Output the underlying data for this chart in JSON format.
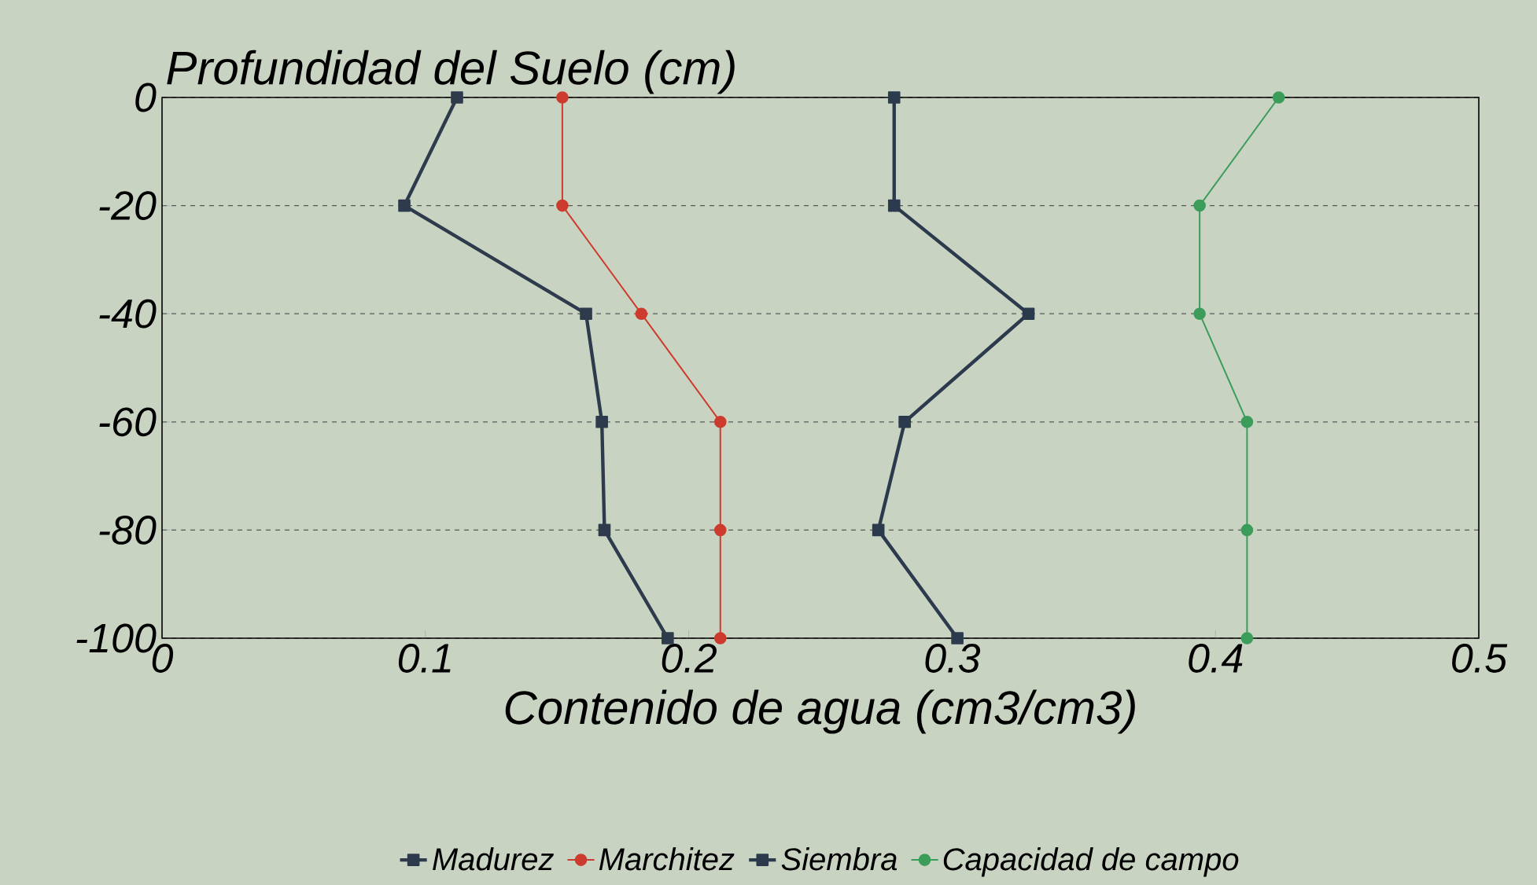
{
  "chart_data": {
    "type": "line",
    "ylabel": "Profundidad del Suelo (cm)",
    "xlabel": "Contenido de agua (cm3/cm3)",
    "xlim": [
      0,
      0.5
    ],
    "xticks": [
      0,
      0.1,
      0.2,
      0.3,
      0.4,
      0.5
    ],
    "ylim": [
      -100,
      0
    ],
    "yticks": [
      -100,
      -80,
      -60,
      -40,
      -20,
      0
    ],
    "grid": "y",
    "legend": "bottom",
    "line_style": "solid",
    "series": [
      {
        "name": "Madurez",
        "color": "#2e3b4c",
        "marker": "square",
        "x": [
          0.112,
          0.092,
          0.161,
          0.167,
          0.168,
          0.192
        ],
        "values": [
          0,
          -20,
          -40,
          -60,
          -80,
          -100
        ]
      },
      {
        "name": "Marchitez",
        "color": "#cc3b2e",
        "marker": "circle",
        "x": [
          0.152,
          0.152,
          0.182,
          0.212,
          0.212,
          0.212
        ],
        "values": [
          0,
          -20,
          -40,
          -60,
          -80,
          -100
        ]
      },
      {
        "name": "Siembra",
        "color": "#2c3a4e",
        "marker": "square",
        "x": [
          0.278,
          0.278,
          0.329,
          0.282,
          0.272,
          0.302
        ],
        "values": [
          0,
          -20,
          -40,
          -60,
          -80,
          -100
        ]
      },
      {
        "name": "Capacidad de campo",
        "color": "#3c9c5a",
        "marker": "circle",
        "x": [
          0.424,
          0.394,
          0.394,
          0.412,
          0.412,
          0.412
        ],
        "values": [
          0,
          -20,
          -40,
          -60,
          -80,
          -100
        ]
      }
    ]
  }
}
